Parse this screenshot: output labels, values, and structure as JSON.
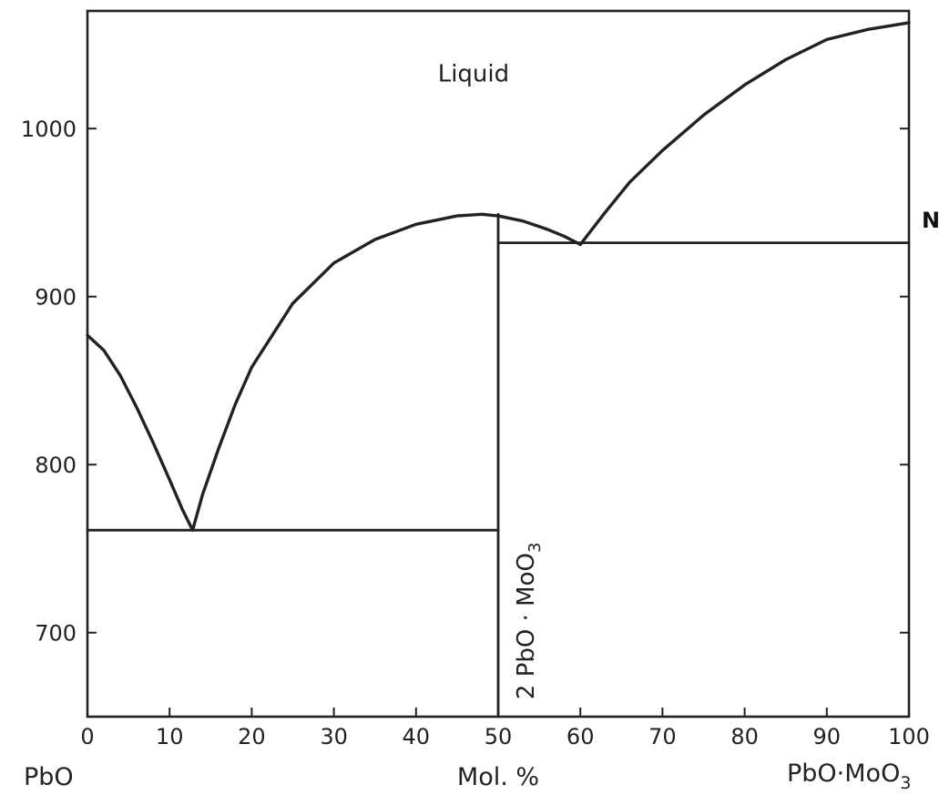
{
  "chart_data": {
    "type": "line",
    "title": "",
    "xlabel": "Mol. %",
    "ylabel": "",
    "x_end_labels": {
      "left": "PbO",
      "right_main": "PbO·MoO",
      "right_sub": "3"
    },
    "xlim": [
      0,
      100
    ],
    "ylim": [
      650,
      1070
    ],
    "x_ticks": [
      0,
      10,
      20,
      30,
      40,
      50,
      60,
      70,
      80,
      90,
      100
    ],
    "y_ticks": [
      700,
      800,
      900,
      1000
    ],
    "grid": false,
    "legend": "none",
    "line_color": "#222222",
    "series": [
      {
        "kind": "liquidus",
        "points": [
          [
            0,
            877
          ],
          [
            2,
            868
          ],
          [
            4,
            853
          ],
          [
            6,
            834
          ],
          [
            8,
            813
          ],
          [
            10,
            791
          ],
          [
            11.5,
            774
          ],
          [
            12.8,
            761
          ]
        ]
      },
      {
        "kind": "liquidus",
        "points": [
          [
            12.8,
            761
          ],
          [
            14,
            782
          ],
          [
            16,
            810
          ],
          [
            18,
            836
          ],
          [
            20,
            858
          ],
          [
            25,
            896
          ],
          [
            30,
            920
          ],
          [
            35,
            934
          ],
          [
            40,
            943
          ],
          [
            45,
            948
          ],
          [
            48,
            949
          ]
        ]
      },
      {
        "kind": "liquidus",
        "points": [
          [
            48,
            949
          ],
          [
            50,
            948
          ],
          [
            53,
            945
          ],
          [
            56,
            940
          ],
          [
            58,
            936
          ],
          [
            60,
            931
          ]
        ]
      },
      {
        "kind": "liquidus",
        "points": [
          [
            60,
            931
          ],
          [
            63,
            950
          ],
          [
            66,
            968
          ],
          [
            70,
            987
          ],
          [
            75,
            1008
          ],
          [
            80,
            1026
          ],
          [
            85,
            1041
          ],
          [
            90,
            1053
          ],
          [
            95,
            1059
          ],
          [
            100,
            1063
          ]
        ]
      },
      {
        "kind": "eutectic",
        "points": [
          [
            0,
            761
          ],
          [
            50,
            761
          ]
        ]
      },
      {
        "kind": "eutectic",
        "points": [
          [
            50,
            932
          ],
          [
            100,
            932
          ]
        ]
      },
      {
        "kind": "compound",
        "points": [
          [
            50,
            650
          ],
          [
            50,
            949
          ]
        ]
      }
    ],
    "annotations": [
      {
        "text": "Liquid",
        "x": 47,
        "y": 1028,
        "rotate": 0
      },
      {
        "text": "2 PbO · MoO",
        "sub": "3",
        "x": 54.3,
        "y": 707,
        "rotate": -90
      }
    ],
    "stray_text": "N"
  }
}
